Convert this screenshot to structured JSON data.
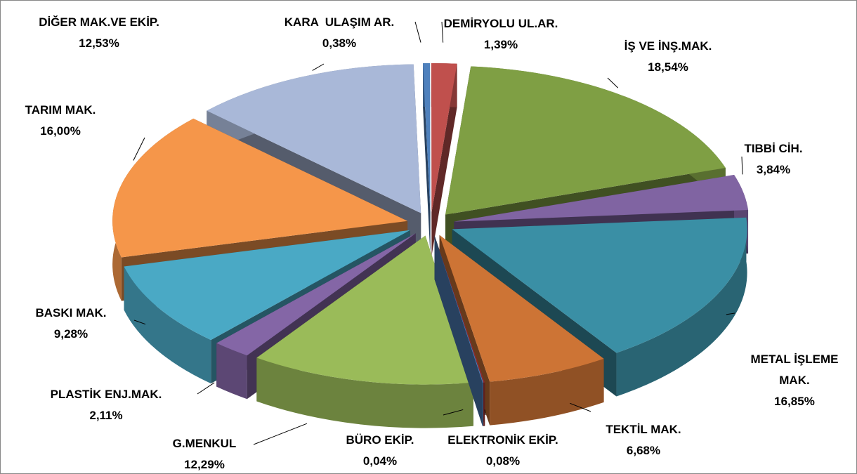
{
  "chart_data": {
    "type": "pie",
    "categories": [
      "KARA  ULAŞIM AR.",
      "DEMİRYOLU UL.AR.",
      "İŞ VE İNŞ.MAK.",
      "TIBBİ CİH.",
      "METAL İŞLEME MAK.",
      "TEKTİL MAK.",
      "ELEKTRONİK EKİP.",
      "BÜRO EKİP.",
      "G.MENKUL",
      "PLASTİK ENJ.MAK.",
      "BASKI MAK.",
      "TARIM MAK.",
      "DİĞER MAK.VE EKİP."
    ],
    "values": [
      0.38,
      1.39,
      18.54,
      3.84,
      16.85,
      6.68,
      0.08,
      0.04,
      12.29,
      2.11,
      9.28,
      16.0,
      12.53
    ],
    "value_labels": [
      "0,38%",
      "1,39%",
      "18,54%",
      "3,84%",
      "16,85%",
      "6,68%",
      "0,08%",
      "0,04%",
      "12,29%",
      "2,11%",
      "9,28%",
      "16,00%",
      "12,53%"
    ],
    "colors": [
      "#4f81bd",
      "#c0504d",
      "#7f9f44",
      "#8064a2",
      "#3a8fa5",
      "#cd7435",
      "#8b2d2b",
      "#4f81bd",
      "#9abb59",
      "#8466a6",
      "#4aa9c5",
      "#f5964a",
      "#a9b8d8"
    ]
  }
}
